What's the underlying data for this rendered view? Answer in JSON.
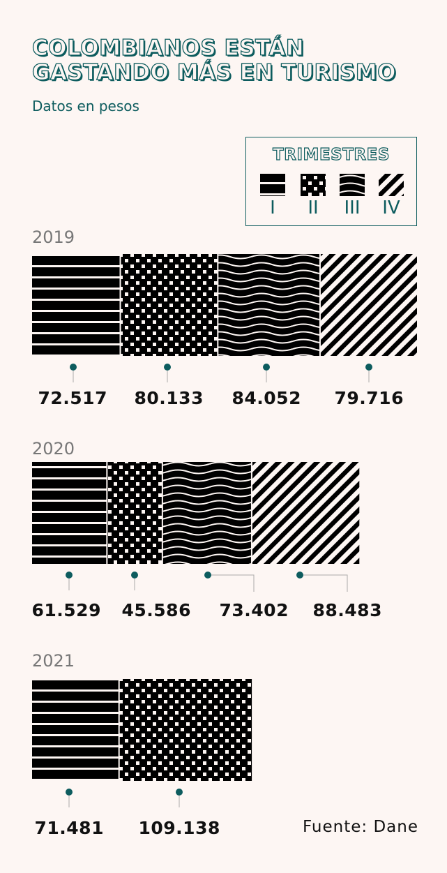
{
  "title_line1": "COLOMBIANOS ESTÁN",
  "title_line2": "GASTANDO MÁS EN TURISMO",
  "subtitle": "Datos en pesos",
  "legend": {
    "title": "TRIMESTRES",
    "items": [
      {
        "label": "I",
        "pattern": "horizontal-stripes-icon"
      },
      {
        "label": "II",
        "pattern": "dots-icon"
      },
      {
        "label": "III",
        "pattern": "waves-icon"
      },
      {
        "label": "IV",
        "pattern": "diagonal-stripes-icon"
      }
    ]
  },
  "colors": {
    "accent": "#0d5c5e",
    "ink": "#000000",
    "background": "#fdf6f3",
    "year": "#777777"
  },
  "source": "Fuente: Dane",
  "chart_data": {
    "type": "bar",
    "orientation": "horizontal-stacked",
    "title": "COLOMBIANOS ESTÁN GASTANDO MÁS EN TURISMO",
    "subtitle": "Datos en pesos",
    "series_names": [
      "I",
      "II",
      "III",
      "IV"
    ],
    "rows": [
      {
        "year": "2019",
        "values": [
          72517,
          80133,
          84052,
          79716
        ],
        "labels": [
          "72.517",
          "80.133",
          "84.052",
          "79.716"
        ]
      },
      {
        "year": "2020",
        "values": [
          61529,
          45586,
          73402,
          88483
        ],
        "labels": [
          "61.529",
          "45.586",
          "73.402",
          "88.483"
        ]
      },
      {
        "year": "2021",
        "values": [
          71481,
          109138
        ],
        "labels": [
          "71.481",
          "109.138"
        ]
      }
    ]
  }
}
